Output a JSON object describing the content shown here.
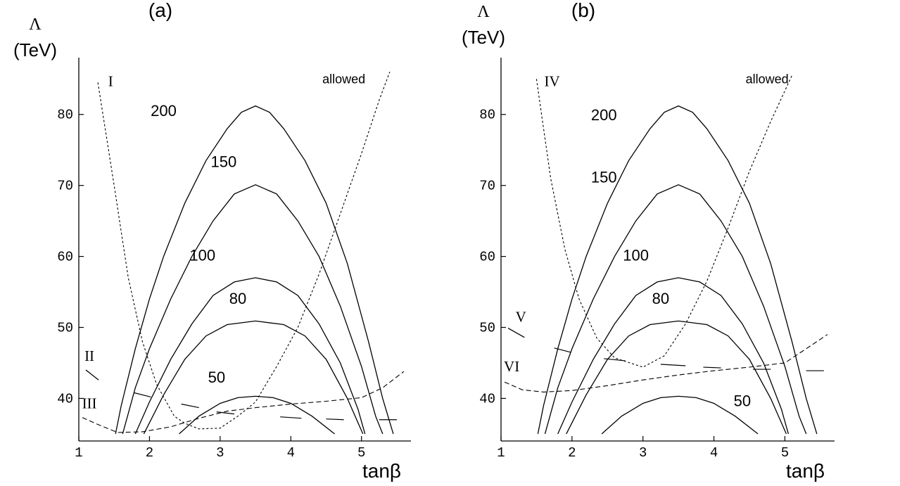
{
  "chart_data": [
    {
      "type": "line",
      "panel_label": "(a)",
      "xlabel": "tanβ",
      "ylabel_symbol": "Λ",
      "ylabel_unit": "(TeV)",
      "xlim": [
        1,
        5.7
      ],
      "ylim": [
        34,
        88
      ],
      "xticks": [
        1,
        2,
        3,
        4,
        5
      ],
      "yticks": [
        40,
        50,
        60,
        70,
        80
      ],
      "series": [
        {
          "name": "200",
          "label_at": [
            2.2,
            79.8
          ],
          "points": [
            [
              1.52,
              35
            ],
            [
              1.6,
              39
            ],
            [
              1.8,
              47
            ],
            [
              2,
              54
            ],
            [
              2.2,
              60
            ],
            [
              2.5,
              67.5
            ],
            [
              2.8,
              73.5
            ],
            [
              3.1,
              78
            ],
            [
              3.3,
              80.3
            ],
            [
              3.5,
              81.2
            ],
            [
              3.7,
              80.3
            ],
            [
              3.9,
              78
            ],
            [
              4.2,
              73.5
            ],
            [
              4.5,
              67.5
            ],
            [
              4.8,
              59
            ],
            [
              5.1,
              48
            ],
            [
              5.3,
              40
            ],
            [
              5.45,
              35
            ]
          ]
        },
        {
          "name": "150",
          "label_at": [
            3.05,
            72.6
          ],
          "points": [
            [
              1.62,
              35
            ],
            [
              1.8,
              41.5
            ],
            [
              2,
              47
            ],
            [
              2.3,
              54
            ],
            [
              2.6,
              60
            ],
            [
              2.9,
              65
            ],
            [
              3.2,
              68.8
            ],
            [
              3.5,
              70.1
            ],
            [
              3.8,
              68.8
            ],
            [
              4.1,
              65
            ],
            [
              4.4,
              60
            ],
            [
              4.7,
              53
            ],
            [
              5,
              44.5
            ],
            [
              5.2,
              37.5
            ],
            [
              5.3,
              35
            ]
          ]
        },
        {
          "name": "100",
          "label_at": [
            2.75,
            59.4
          ],
          "points": [
            [
              1.8,
              35
            ],
            [
              2,
              39.5
            ],
            [
              2.3,
              45.5
            ],
            [
              2.6,
              50.5
            ],
            [
              2.9,
              54.5
            ],
            [
              3.2,
              56.4
            ],
            [
              3.5,
              57
            ],
            [
              3.8,
              56.4
            ],
            [
              4.1,
              54.5
            ],
            [
              4.4,
              50.5
            ],
            [
              4.7,
              45
            ],
            [
              4.95,
              38.5
            ],
            [
              5.05,
              35
            ]
          ]
        },
        {
          "name": "80",
          "label_at": [
            3.25,
            53.3
          ],
          "points": [
            [
              1.92,
              35
            ],
            [
              2.2,
              40.5
            ],
            [
              2.5,
              45.5
            ],
            [
              2.8,
              48.8
            ],
            [
              3.1,
              50.4
            ],
            [
              3.5,
              50.9
            ],
            [
              3.9,
              50.4
            ],
            [
              4.2,
              48.8
            ],
            [
              4.5,
              45.5
            ],
            [
              4.8,
              40
            ],
            [
              5.02,
              35
            ]
          ]
        },
        {
          "name": "50",
          "label_at": [
            2.95,
            42.2
          ],
          "points": [
            [
              2.42,
              35
            ],
            [
              2.7,
              37.5
            ],
            [
              3,
              39.3
            ],
            [
              3.25,
              40.1
            ],
            [
              3.5,
              40.3
            ],
            [
              3.75,
              40.1
            ],
            [
              4,
              39.3
            ],
            [
              4.3,
              37.5
            ],
            [
              4.62,
              35
            ]
          ]
        }
      ],
      "bound_I": [
        [
          1.27,
          84.5
        ],
        [
          1.5,
          70
        ],
        [
          1.7,
          57
        ],
        [
          1.9,
          48
        ],
        [
          2.1,
          42
        ],
        [
          2.35,
          37.5
        ],
        [
          2.5,
          36.5
        ],
        [
          2.7,
          35.7
        ],
        [
          3,
          35.8
        ],
        [
          3.25,
          37.5
        ],
        [
          3.5,
          39.5
        ],
        [
          3.8,
          44.5
        ],
        [
          4.1,
          50
        ],
        [
          4.4,
          57.5
        ],
        [
          4.7,
          66
        ],
        [
          5,
          74.5
        ],
        [
          5.25,
          82
        ],
        [
          5.4,
          86
        ]
      ],
      "bound_III": [
        [
          1.05,
          37.3
        ],
        [
          1.3,
          36.2
        ],
        [
          1.55,
          35.2
        ],
        [
          1.9,
          35.3
        ],
        [
          2.3,
          36
        ],
        [
          2.7,
          37.2
        ],
        [
          3.1,
          38.2
        ],
        [
          3.5,
          38.7
        ],
        [
          4,
          39.2
        ],
        [
          4.5,
          39.6
        ],
        [
          5,
          40.1
        ],
        [
          5.3,
          41.5
        ],
        [
          5.6,
          43.8
        ]
      ],
      "dashes": [
        [
          [
            1.78,
            40.8
          ],
          [
            2.02,
            40.2
          ]
        ],
        [
          [
            2.45,
            39.2
          ],
          [
            2.7,
            38.7
          ]
        ],
        [
          [
            2.95,
            38.1
          ],
          [
            3.2,
            37.8
          ]
        ],
        [
          [
            3.85,
            37.4
          ],
          [
            4.15,
            37.2
          ]
        ],
        [
          [
            4.5,
            37.1
          ],
          [
            4.75,
            37
          ]
        ],
        [
          [
            5.25,
            37
          ],
          [
            5.5,
            37
          ]
        ]
      ],
      "bound_II_mark": [
        [
          1.1,
          44
        ],
        [
          1.28,
          42.6
        ]
      ],
      "region_labels": [
        {
          "text": "I",
          "x": 1.45,
          "y": 84,
          "font": "serif"
        },
        {
          "text": "II",
          "x": 1.15,
          "y": 45.3,
          "font": "serif"
        },
        {
          "text": "III",
          "x": 1.15,
          "y": 38.6,
          "font": "serif"
        },
        {
          "text": "allowed",
          "x": 4.75,
          "y": 84.4,
          "font": "sans"
        }
      ]
    },
    {
      "type": "line",
      "panel_label": "(b)",
      "xlabel": "tanβ",
      "ylabel_symbol": "Λ",
      "ylabel_unit": "(TeV)",
      "xlim": [
        1,
        5.7
      ],
      "ylim": [
        34,
        88
      ],
      "xticks": [
        1,
        2,
        3,
        4,
        5
      ],
      "yticks": [
        40,
        50,
        60,
        70,
        80
      ],
      "series": [
        {
          "name": "200",
          "label_at": [
            2.45,
            79.2
          ],
          "points": [
            [
              1.52,
              35
            ],
            [
              1.6,
              39
            ],
            [
              1.8,
              47
            ],
            [
              2,
              54
            ],
            [
              2.2,
              60
            ],
            [
              2.5,
              67.5
            ],
            [
              2.8,
              73.5
            ],
            [
              3.1,
              78
            ],
            [
              3.3,
              80.3
            ],
            [
              3.5,
              81.2
            ],
            [
              3.7,
              80.3
            ],
            [
              3.9,
              78
            ],
            [
              4.2,
              73.5
            ],
            [
              4.5,
              67.5
            ],
            [
              4.8,
              59
            ],
            [
              5.1,
              48
            ],
            [
              5.3,
              40
            ],
            [
              5.45,
              35
            ]
          ]
        },
        {
          "name": "150",
          "label_at": [
            2.45,
            70.4
          ],
          "points": [
            [
              1.62,
              35
            ],
            [
              1.8,
              41.5
            ],
            [
              2,
              47
            ],
            [
              2.3,
              54
            ],
            [
              2.6,
              60
            ],
            [
              2.9,
              65
            ],
            [
              3.2,
              68.8
            ],
            [
              3.5,
              70.1
            ],
            [
              3.8,
              68.8
            ],
            [
              4.1,
              65
            ],
            [
              4.4,
              60
            ],
            [
              4.7,
              53
            ],
            [
              5,
              44.5
            ],
            [
              5.2,
              37.5
            ],
            [
              5.3,
              35
            ]
          ]
        },
        {
          "name": "100",
          "label_at": [
            2.9,
            59.4
          ],
          "points": [
            [
              1.8,
              35
            ],
            [
              2,
              39.5
            ],
            [
              2.3,
              45.5
            ],
            [
              2.6,
              50.5
            ],
            [
              2.9,
              54.5
            ],
            [
              3.2,
              56.4
            ],
            [
              3.5,
              57
            ],
            [
              3.8,
              56.4
            ],
            [
              4.1,
              54.5
            ],
            [
              4.4,
              50.5
            ],
            [
              4.7,
              45
            ],
            [
              4.95,
              38.5
            ],
            [
              5.05,
              35
            ]
          ]
        },
        {
          "name": "80",
          "label_at": [
            3.25,
            53.3
          ],
          "points": [
            [
              1.92,
              35
            ],
            [
              2.2,
              40.5
            ],
            [
              2.5,
              45.5
            ],
            [
              2.8,
              48.8
            ],
            [
              3.1,
              50.4
            ],
            [
              3.5,
              50.9
            ],
            [
              3.9,
              50.4
            ],
            [
              4.2,
              48.8
            ],
            [
              4.5,
              45.5
            ],
            [
              4.8,
              40
            ],
            [
              5.02,
              35
            ]
          ]
        },
        {
          "name": "50",
          "label_at": [
            4.4,
            38.9
          ],
          "points": [
            [
              2.42,
              35
            ],
            [
              2.7,
              37.5
            ],
            [
              3,
              39.3
            ],
            [
              3.25,
              40.1
            ],
            [
              3.5,
              40.3
            ],
            [
              3.75,
              40.1
            ],
            [
              4,
              39.3
            ],
            [
              4.3,
              37.5
            ],
            [
              4.62,
              35
            ]
          ]
        }
      ],
      "bound_IV": [
        [
          1.5,
          85
        ],
        [
          1.7,
          71
        ],
        [
          1.9,
          61
        ],
        [
          2.1,
          54
        ],
        [
          2.35,
          48.5
        ],
        [
          2.6,
          45.7
        ],
        [
          3,
          44.4
        ],
        [
          3.3,
          46
        ],
        [
          3.6,
          50.5
        ],
        [
          3.9,
          56.5
        ],
        [
          4.2,
          64
        ],
        [
          4.5,
          72
        ],
        [
          4.8,
          79
        ],
        [
          5.1,
          85.5
        ]
      ],
      "bound_VI": [
        [
          1.05,
          42.3
        ],
        [
          1.3,
          41.2
        ],
        [
          1.6,
          40.9
        ],
        [
          2,
          41.1
        ],
        [
          2.5,
          41.8
        ],
        [
          3,
          42.6
        ],
        [
          3.5,
          43.3
        ],
        [
          4,
          43.9
        ],
        [
          4.5,
          44.4
        ],
        [
          5,
          45
        ],
        [
          5.3,
          47
        ],
        [
          5.6,
          49
        ]
      ],
      "dashes": [
        [
          [
            1.75,
            47.1
          ],
          [
            1.98,
            46.5
          ]
        ],
        [
          [
            2.45,
            45.6
          ],
          [
            2.75,
            45.3
          ]
        ],
        [
          [
            3.25,
            44.8
          ],
          [
            3.6,
            44.6
          ]
        ],
        [
          [
            3.85,
            44.4
          ],
          [
            4.1,
            44.3
          ]
        ],
        [
          [
            4.55,
            44.1
          ],
          [
            4.8,
            44.1
          ]
        ],
        [
          [
            5.3,
            43.9
          ],
          [
            5.55,
            43.9
          ]
        ]
      ],
      "bound_V_mark": [
        [
          1.1,
          49.9
        ],
        [
          1.33,
          48.6
        ]
      ],
      "region_labels": [
        {
          "text": "IV",
          "x": 1.72,
          "y": 84,
          "font": "serif"
        },
        {
          "text": "V",
          "x": 1.28,
          "y": 50.8,
          "font": "serif"
        },
        {
          "text": "VI",
          "x": 1.15,
          "y": 43.8,
          "font": "serif"
        },
        {
          "text": "allowed",
          "x": 4.75,
          "y": 84.4,
          "font": "sans"
        }
      ]
    }
  ]
}
